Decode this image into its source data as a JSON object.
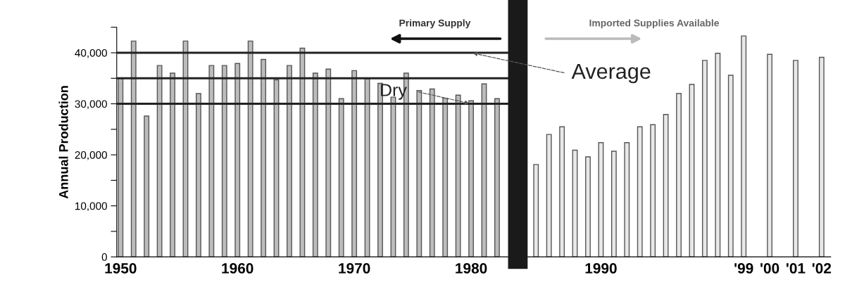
{
  "chart_data": {
    "type": "bar",
    "ylabel": "Annual Production",
    "categories": [
      "1950",
      null,
      null,
      null,
      null,
      null,
      null,
      null,
      null,
      "1960",
      null,
      null,
      null,
      null,
      null,
      null,
      null,
      null,
      "1970",
      null,
      null,
      null,
      null,
      null,
      null,
      null,
      null,
      "1980",
      null,
      null,
      null,
      null,
      null,
      null,
      null,
      null,
      null,
      "1990",
      null,
      null,
      null,
      null,
      null,
      null,
      null,
      null,
      null,
      null,
      "'99",
      null,
      "'00",
      null,
      "'01",
      null,
      "'02"
    ],
    "values": [
      35000,
      42300,
      27600,
      37500,
      36000,
      42300,
      32000,
      37500,
      37500,
      37900,
      42300,
      38700,
      34700,
      37500,
      40900,
      36000,
      36800,
      31000,
      36500,
      34900,
      34000,
      31300,
      36000,
      32600,
      32900,
      31100,
      31700,
      30600,
      33900,
      31000,
      null,
      null,
      18100,
      24000,
      25500,
      20900,
      19600,
      22400,
      20700,
      22400,
      25500,
      25900,
      27900,
      32000,
      33800,
      38500,
      39900,
      35600,
      43300,
      null,
      39700,
      null,
      38500,
      null,
      39100
    ],
    "colors": [
      "#bcbcbc",
      "#bcbcbc",
      "#bcbcbc",
      "#bcbcbc",
      "#bcbcbc",
      "#bcbcbc",
      "#bcbcbc",
      "#bcbcbc",
      "#bcbcbc",
      "#bcbcbc",
      "#bcbcbc",
      "#bcbcbc",
      "#bcbcbc",
      "#bcbcbc",
      "#bcbcbc",
      "#bcbcbc",
      "#bcbcbc",
      "#bcbcbc",
      "#bcbcbc",
      "#bcbcbc",
      "#bcbcbc",
      "#bcbcbc",
      "#bcbcbc",
      "#bcbcbc",
      "#bcbcbc",
      "#bcbcbc",
      "#bcbcbc",
      "#bcbcbc",
      "#bcbcbc",
      "#bcbcbc",
      null,
      null,
      "#e8e8e8",
      "#e8e8e8",
      "#e8e8e8",
      "#e8e8e8",
      "#e8e8e8",
      "#e8e8e8",
      "#e8e8e8",
      "#e8e8e8",
      "#e8e8e8",
      "#e8e8e8",
      "#e8e8e8",
      "#e8e8e8",
      "#e8e8e8",
      "#e8e8e8",
      "#e8e8e8",
      "#e8e8e8",
      "#e8e8e8",
      null,
      "#e8e8e8",
      null,
      "#e8e8e8",
      null,
      "#e8e8e8"
    ],
    "ylim": [
      0,
      45000
    ],
    "yticks": [
      {
        "value": 0,
        "label": "0"
      },
      {
        "value": 5000,
        "label": null
      },
      {
        "value": 10000,
        "label": "10,000"
      },
      {
        "value": 15000,
        "label": null
      },
      {
        "value": 20000,
        "label": "20,000"
      },
      {
        "value": 25000,
        "label": null
      },
      {
        "value": 30000,
        "label": "30,000"
      },
      {
        "value": 35000,
        "label": null
      },
      {
        "value": 40000,
        "label": "40,000"
      },
      {
        "value": 45000,
        "label": null
      }
    ],
    "ref_lines": [
      {
        "axis": "y",
        "value": 40000,
        "color": "#222222"
      },
      {
        "axis": "y",
        "value": 35000,
        "color": "#222222"
      },
      {
        "axis": "y",
        "value": 30000,
        "color": "#222222"
      }
    ],
    "annotations": [
      "Primary Supply",
      "Imported Supplies Available",
      {
        "text": "Average",
        "x": "1980",
        "y": 40000
      },
      {
        "text": "Dry",
        "x": "1980",
        "y": 30000
      }
    ],
    "grid": false
  }
}
